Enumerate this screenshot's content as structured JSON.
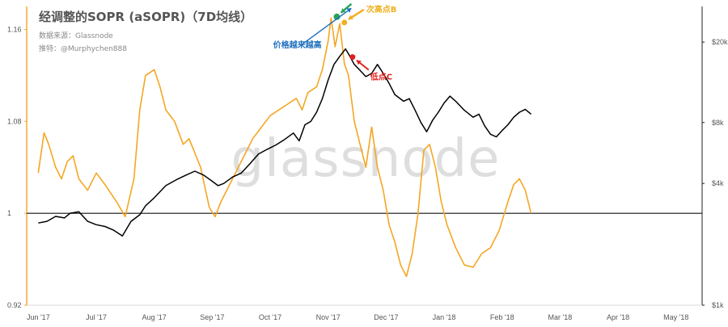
{
  "chart_data": {
    "type": "line",
    "title": "经调整的SOPR (aSOPR)（7D均线）",
    "source": "数据来源：Glassnode",
    "author": "推特：@Murphychen888",
    "watermark": "glassnode",
    "xlabels": [
      "Jun '17",
      "Jul '17",
      "Aug '17",
      "Sep '17",
      "Oct '17",
      "Nov '17",
      "Dec '17",
      "Jan '18",
      "Feb '18",
      "Mar '18",
      "Apr '18",
      "May '18"
    ],
    "y_left": {
      "ticks": [
        "0.92",
        "1",
        "1.08",
        "1.16"
      ],
      "range": [
        0.92,
        1.18
      ],
      "scale": "linear"
    },
    "y_right": {
      "ticks": [
        "$1k",
        "$4k",
        "$8k",
        "$20k"
      ],
      "range": [
        1000,
        30000
      ],
      "scale": "log"
    },
    "reference_line": 1.0,
    "grid": false,
    "series": [
      {
        "color": "#f5a623",
        "axis": "left",
        "points": [
          [
            0.0,
            1.035
          ],
          [
            0.1,
            1.07
          ],
          [
            0.18,
            1.06
          ],
          [
            0.3,
            1.04
          ],
          [
            0.4,
            1.03
          ],
          [
            0.5,
            1.045
          ],
          [
            0.6,
            1.05
          ],
          [
            0.7,
            1.03
          ],
          [
            0.85,
            1.02
          ],
          [
            1.0,
            1.035
          ],
          [
            1.15,
            1.025
          ],
          [
            1.35,
            1.01
          ],
          [
            1.5,
            0.997
          ],
          [
            1.65,
            1.03
          ],
          [
            1.75,
            1.09
          ],
          [
            1.85,
            1.12
          ],
          [
            2.0,
            1.125
          ],
          [
            2.1,
            1.11
          ],
          [
            2.2,
            1.09
          ],
          [
            2.35,
            1.08
          ],
          [
            2.5,
            1.06
          ],
          [
            2.6,
            1.065
          ],
          [
            2.8,
            1.04
          ],
          [
            2.95,
            1.005
          ],
          [
            3.05,
            0.997
          ],
          [
            3.15,
            1.01
          ],
          [
            3.3,
            1.025
          ],
          [
            3.45,
            1.04
          ],
          [
            3.55,
            1.05
          ],
          [
            3.7,
            1.065
          ],
          [
            3.85,
            1.075
          ],
          [
            4.0,
            1.085
          ],
          [
            4.15,
            1.09
          ],
          [
            4.3,
            1.095
          ],
          [
            4.45,
            1.1
          ],
          [
            4.55,
            1.09
          ],
          [
            4.65,
            1.105
          ],
          [
            4.8,
            1.11
          ],
          [
            4.9,
            1.125
          ],
          [
            5.0,
            1.15
          ],
          [
            5.05,
            1.17
          ],
          [
            5.12,
            1.145
          ],
          [
            5.2,
            1.165
          ],
          [
            5.28,
            1.13
          ],
          [
            5.35,
            1.12
          ],
          [
            5.45,
            1.08
          ],
          [
            5.55,
            1.06
          ],
          [
            5.65,
            1.04
          ],
          [
            5.75,
            1.075
          ],
          [
            5.85,
            1.04
          ],
          [
            5.95,
            1.02
          ],
          [
            6.05,
            0.99
          ],
          [
            6.15,
            0.975
          ],
          [
            6.25,
            0.955
          ],
          [
            6.35,
            0.945
          ],
          [
            6.45,
            0.965
          ],
          [
            6.55,
            1.0
          ],
          [
            6.65,
            1.055
          ],
          [
            6.75,
            1.06
          ],
          [
            6.85,
            1.04
          ],
          [
            6.95,
            1.01
          ],
          [
            7.05,
            0.99
          ],
          [
            7.2,
            0.97
          ],
          [
            7.35,
            0.955
          ],
          [
            7.5,
            0.953
          ],
          [
            7.65,
            0.965
          ],
          [
            7.8,
            0.97
          ],
          [
            7.95,
            0.985
          ],
          [
            8.1,
            1.01
          ],
          [
            8.2,
            1.025
          ],
          [
            8.3,
            1.03
          ],
          [
            8.4,
            1.02
          ],
          [
            8.5,
            1.0
          ]
        ]
      },
      {
        "color": "#000000",
        "axis": "right",
        "points": [
          [
            0.0,
            2550
          ],
          [
            0.15,
            2600
          ],
          [
            0.3,
            2750
          ],
          [
            0.45,
            2700
          ],
          [
            0.55,
            2850
          ],
          [
            0.7,
            2900
          ],
          [
            0.85,
            2600
          ],
          [
            1.0,
            2500
          ],
          [
            1.15,
            2450
          ],
          [
            1.3,
            2350
          ],
          [
            1.45,
            2200
          ],
          [
            1.6,
            2600
          ],
          [
            1.75,
            2800
          ],
          [
            1.85,
            3100
          ],
          [
            2.0,
            3400
          ],
          [
            2.2,
            3900
          ],
          [
            2.4,
            4200
          ],
          [
            2.55,
            4400
          ],
          [
            2.7,
            4600
          ],
          [
            2.85,
            4400
          ],
          [
            3.0,
            4100
          ],
          [
            3.1,
            3900
          ],
          [
            3.2,
            4000
          ],
          [
            3.35,
            4300
          ],
          [
            3.5,
            4500
          ],
          [
            3.65,
            5000
          ],
          [
            3.8,
            5600
          ],
          [
            3.95,
            5900
          ],
          [
            4.1,
            6200
          ],
          [
            4.25,
            6600
          ],
          [
            4.4,
            7100
          ],
          [
            4.5,
            6500
          ],
          [
            4.6,
            7800
          ],
          [
            4.7,
            8100
          ],
          [
            4.8,
            9000
          ],
          [
            4.9,
            10500
          ],
          [
            5.0,
            13000
          ],
          [
            5.1,
            15500
          ],
          [
            5.2,
            17000
          ],
          [
            5.3,
            18500
          ],
          [
            5.35,
            17500
          ],
          [
            5.45,
            15500
          ],
          [
            5.55,
            14500
          ],
          [
            5.65,
            13500
          ],
          [
            5.75,
            14000
          ],
          [
            5.85,
            15500
          ],
          [
            5.95,
            14000
          ],
          [
            6.05,
            12500
          ],
          [
            6.15,
            11000
          ],
          [
            6.3,
            10200
          ],
          [
            6.4,
            10500
          ],
          [
            6.5,
            9200
          ],
          [
            6.6,
            8000
          ],
          [
            6.7,
            7200
          ],
          [
            6.8,
            8200
          ],
          [
            6.9,
            9000
          ],
          [
            7.0,
            10000
          ],
          [
            7.1,
            10800
          ],
          [
            7.2,
            10200
          ],
          [
            7.35,
            9200
          ],
          [
            7.5,
            8500
          ],
          [
            7.6,
            8800
          ],
          [
            7.7,
            7700
          ],
          [
            7.8,
            7000
          ],
          [
            7.9,
            6800
          ],
          [
            8.0,
            7300
          ],
          [
            8.1,
            7800
          ],
          [
            8.2,
            8500
          ],
          [
            8.3,
            9000
          ],
          [
            8.4,
            9300
          ],
          [
            8.5,
            8800
          ]
        ]
      }
    ],
    "annotations": [
      {
        "text": "最高点A",
        "color": "#27a35a",
        "x": 5.15,
        "y": 1.171
      },
      {
        "text": "次高点B",
        "color": "#f0b020",
        "x": 5.28,
        "y": 1.166
      },
      {
        "text": "低点C",
        "color": "#e02020",
        "x": 5.42,
        "y": 1.136
      },
      {
        "text": "价格越来越高",
        "color": "#1e6fbf"
      }
    ]
  }
}
